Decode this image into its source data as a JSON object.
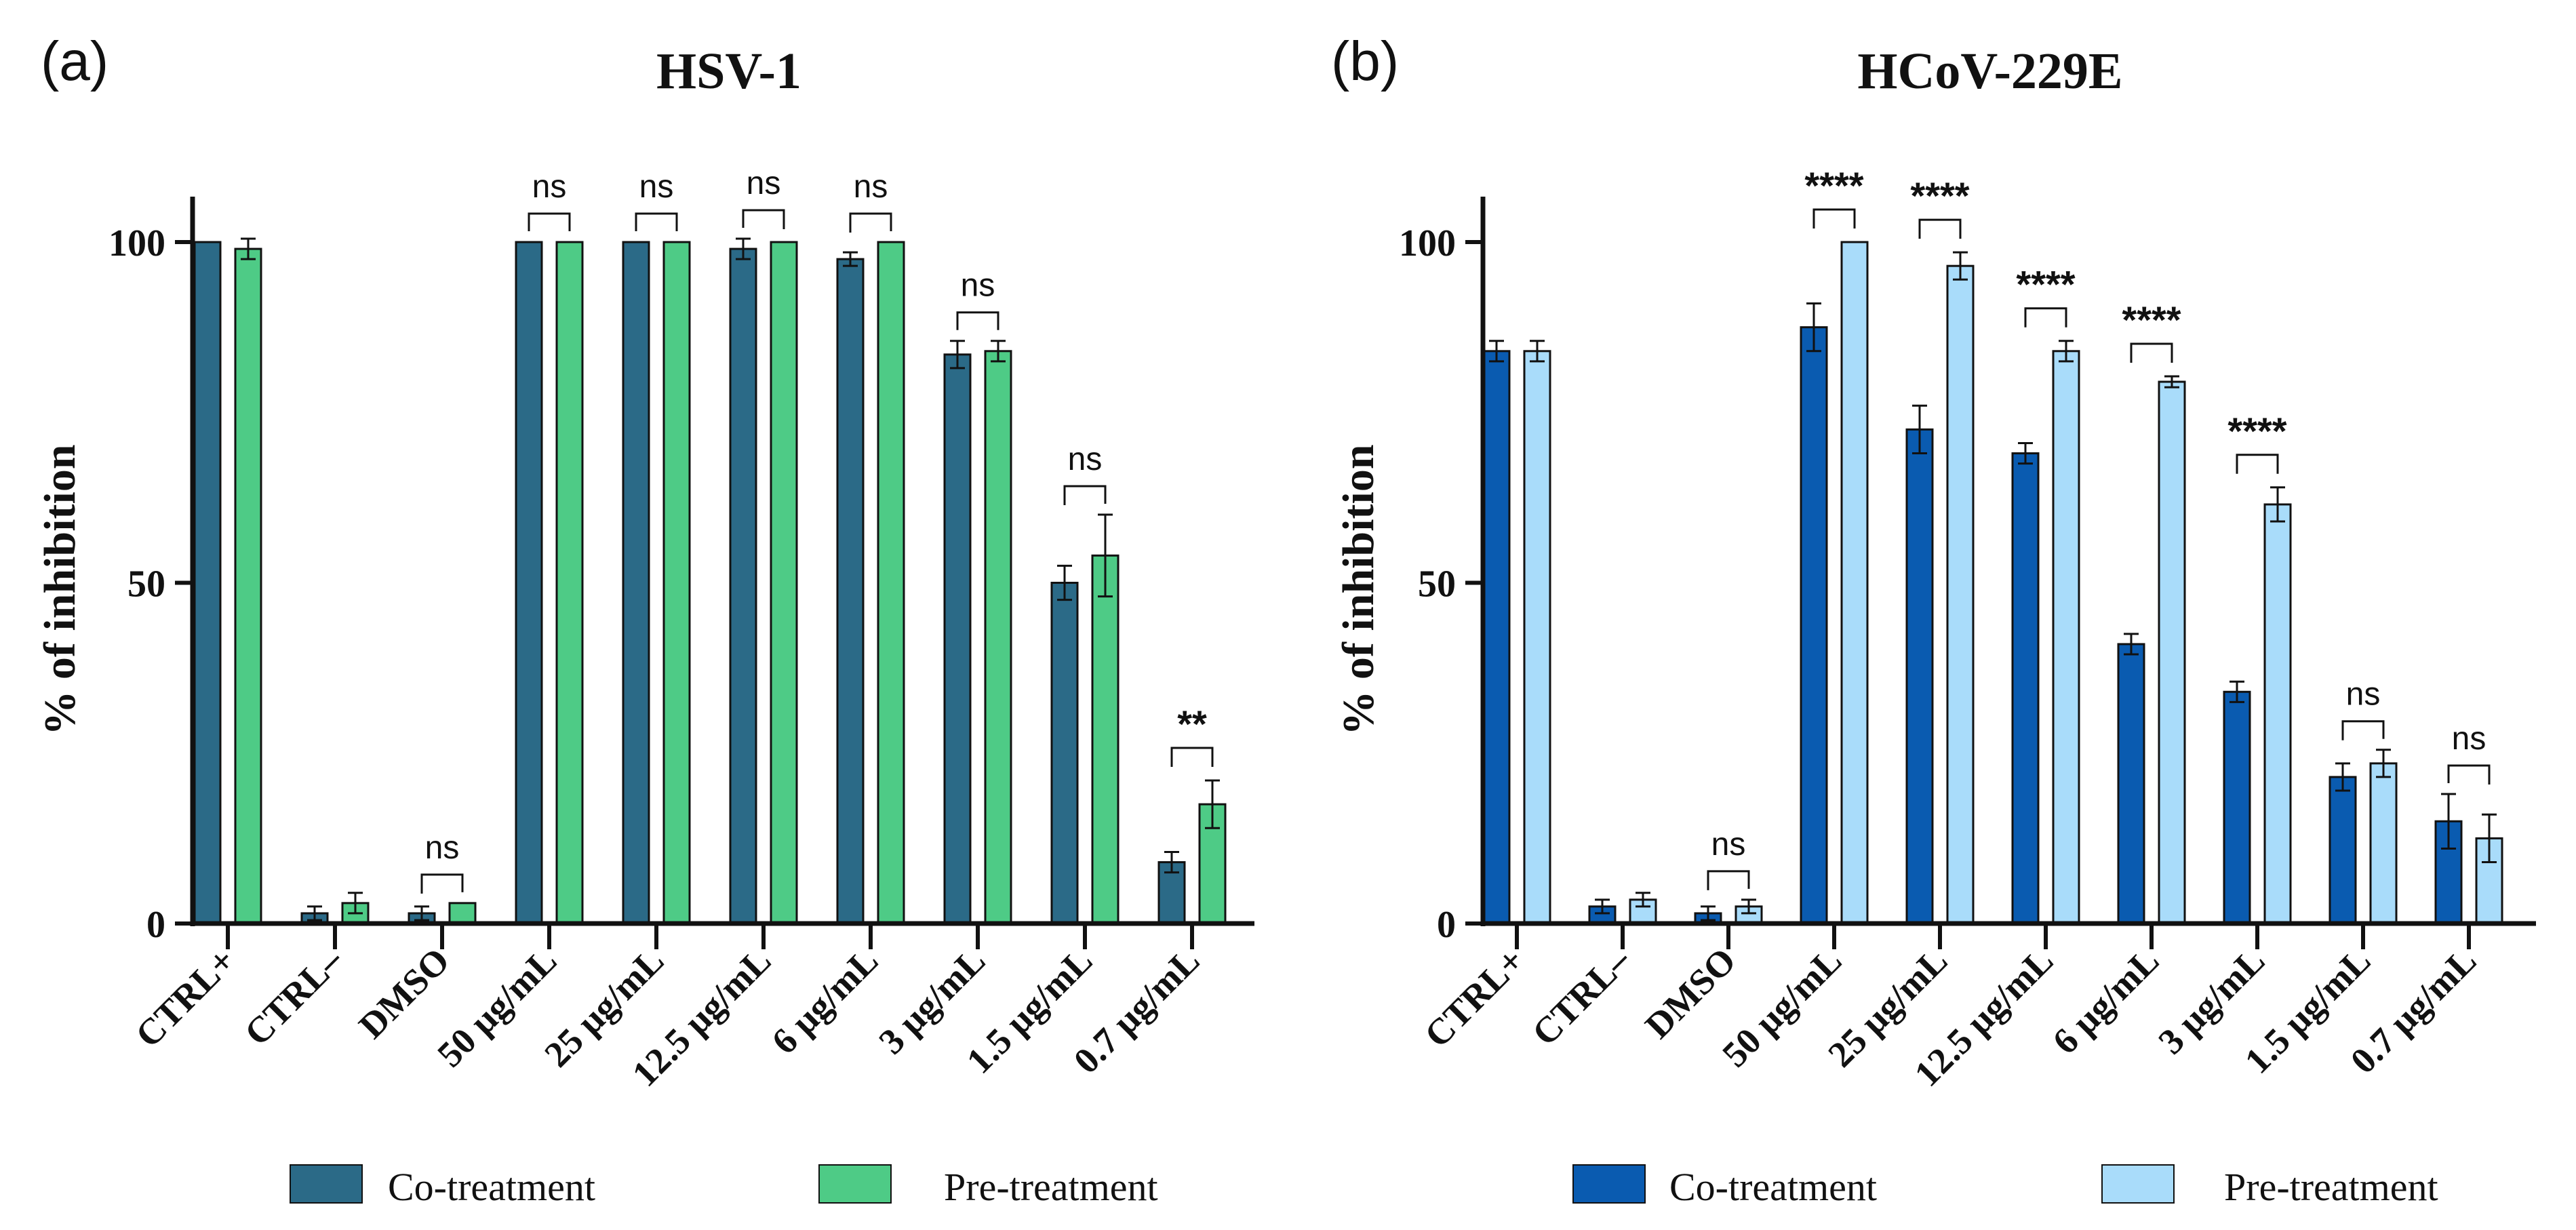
{
  "chart_data": [
    {
      "type": "bar",
      "panel": "(a)",
      "title": "HSV-1",
      "xlabel": "",
      "ylabel": "% of inhibition",
      "ylim": [
        0,
        100
      ],
      "yticks": [
        "0",
        "50",
        "100"
      ],
      "categories": [
        "CTRL+",
        "CTRL–",
        "DMSO",
        "50 µg/mL",
        "25 µg/mL",
        "12.5 µg/mL",
        "6 µg/mL",
        "3 µg/mL",
        "1.5 µg/mL",
        "0.7 µg/mL"
      ],
      "series": [
        {
          "name": "Co-treatment",
          "color": "#2b6a87",
          "values": [
            100,
            1.5,
            1.5,
            100,
            100,
            99,
            97.5,
            83.5,
            50,
            9
          ],
          "errors": [
            0,
            1,
            1,
            0,
            0,
            1.5,
            1,
            2,
            2.5,
            1.5
          ]
        },
        {
          "name": "Pre-treatment",
          "color": "#4ecb86",
          "values": [
            99,
            3,
            3,
            100,
            100,
            100,
            100,
            84,
            54,
            17.5
          ],
          "errors": [
            1.5,
            1.5,
            0,
            0,
            0,
            0,
            0,
            1.5,
            6,
            3.5
          ]
        }
      ],
      "significance": [
        "",
        "",
        "ns",
        "ns",
        "ns",
        "ns",
        "ns",
        "ns",
        "ns",
        "**"
      ],
      "legend": [
        "Co-treatment",
        "Pre-treatment"
      ]
    },
    {
      "type": "bar",
      "panel": "(b)",
      "title": "HCoV-229E",
      "xlabel": "",
      "ylabel": "% of inhibition",
      "ylim": [
        0,
        100
      ],
      "yticks": [
        "0",
        "50",
        "100"
      ],
      "categories": [
        "CTRL+",
        "CTRL–",
        "DMSO",
        "50 µg/mL",
        "25 µg/mL",
        "12.5 µg/mL",
        "6 µg/mL",
        "3 µg/mL",
        "1.5 µg/mL",
        "0.7 µg/mL"
      ],
      "series": [
        {
          "name": "Co-treatment",
          "color": "#0a5bb0",
          "values": [
            84,
            2.5,
            1.5,
            87.5,
            72.5,
            69,
            41,
            34,
            21.5,
            15
          ],
          "errors": [
            1.5,
            1,
            1,
            3.5,
            3.5,
            1.5,
            1.5,
            1.5,
            2,
            4
          ]
        },
        {
          "name": "Pre-treatment",
          "color": "#a9dcfa",
          "values": [
            84,
            3.5,
            2.5,
            100,
            96.5,
            84,
            79.5,
            61.5,
            23.5,
            12.5
          ],
          "errors": [
            1.5,
            1,
            1,
            0,
            2,
            1.5,
            0.8,
            2.5,
            2,
            3.5
          ]
        }
      ],
      "significance": [
        "",
        "",
        "ns",
        "****",
        "****",
        "****",
        "****",
        "****",
        "ns",
        "ns"
      ],
      "legend": [
        "Co-treatment",
        "Pre-treatment"
      ]
    }
  ]
}
